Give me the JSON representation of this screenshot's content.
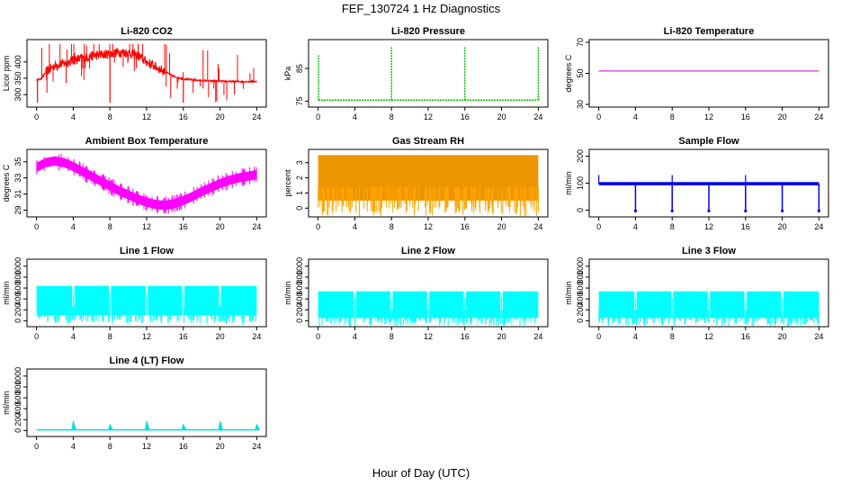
{
  "figure": {
    "title": "FEF_130724  1 Hz Diagnostics",
    "xlabel": "Hour of Day (UTC)"
  },
  "chart_data": [
    {
      "type": "line",
      "title": "Li-820 CO2",
      "ylabel": "Licor ppm",
      "color": "#ff0000",
      "xlim": [
        0,
        24
      ],
      "xticks": [
        0,
        4,
        8,
        12,
        16,
        20,
        24
      ],
      "ylim": [
        270,
        460
      ],
      "yticks": [
        300,
        350,
        400
      ],
      "pattern": "co2",
      "series": [
        {
          "x": [
            0,
            0.5,
            1,
            2,
            3,
            4,
            5,
            6,
            7,
            8,
            9,
            10,
            11,
            12,
            13,
            14,
            15,
            16,
            17,
            18,
            19,
            20,
            21,
            22,
            23,
            24
          ],
          "y": [
            345,
            348,
            368,
            390,
            395,
            405,
            412,
            418,
            422,
            425,
            430,
            428,
            420,
            400,
            385,
            370,
            355,
            348,
            345,
            343,
            342,
            341,
            340,
            340,
            340,
            340
          ]
        }
      ]
    },
    {
      "type": "line",
      "title": "Li-820 Pressure",
      "ylabel": "kPa",
      "color": "#00bb00",
      "xlim": [
        0,
        24
      ],
      "xticks": [
        0,
        4,
        8,
        12,
        16,
        20,
        24
      ],
      "ylim": [
        74,
        93
      ],
      "yticks": [
        75,
        85
      ],
      "pattern": "pressure",
      "series": [
        {
          "x": [
            0,
            24
          ],
          "y": [
            75.3,
            75.3
          ]
        }
      ],
      "spikes": [
        {
          "x": 0.05,
          "y": 89
        },
        {
          "x": 8,
          "y": 91.5
        },
        {
          "x": 16,
          "y": 91.5
        },
        {
          "x": 24,
          "y": 91.5
        }
      ]
    },
    {
      "type": "line",
      "title": "Li-820 Temperature",
      "ylabel": "degrees C",
      "color": "#cc00cc",
      "xlim": [
        0,
        24
      ],
      "xticks": [
        0,
        4,
        8,
        12,
        16,
        20,
        24
      ],
      "ylim": [
        30,
        70
      ],
      "yticks": [
        30,
        50,
        70
      ],
      "pattern": "flat",
      "series": [
        {
          "x": [
            0,
            24
          ],
          "y": [
            51.5,
            51.5
          ]
        }
      ]
    },
    {
      "type": "line",
      "title": "Ambient Box Temperature",
      "ylabel": "degrees C",
      "color": "#ff00ff",
      "xlim": [
        0,
        24
      ],
      "xticks": [
        0,
        4,
        8,
        12,
        16,
        20,
        24
      ],
      "ylim": [
        28.5,
        36.2
      ],
      "yticks": [
        29,
        31,
        33,
        35
      ],
      "pattern": "temperature",
      "series": [
        {
          "x": [
            0,
            1,
            2,
            3,
            4,
            5,
            6,
            7,
            8,
            9,
            10,
            11,
            12,
            13,
            14,
            15,
            16,
            17,
            18,
            19,
            20,
            21,
            22,
            23,
            24
          ],
          "y": [
            34.3,
            34.9,
            35.1,
            34.9,
            34.4,
            33.8,
            33.2,
            32.6,
            32.0,
            31.4,
            30.9,
            30.4,
            30.0,
            29.7,
            29.6,
            29.8,
            30.2,
            30.7,
            31.3,
            31.8,
            32.3,
            32.7,
            33.0,
            33.2,
            33.4
          ]
        }
      ]
    },
    {
      "type": "area",
      "title": "Gas Stream RH",
      "ylabel": "percent",
      "color": "#ffa500",
      "xlim": [
        0,
        24
      ],
      "xticks": [
        0,
        4,
        8,
        12,
        16,
        20,
        24
      ],
      "ylim": [
        -0.4,
        3.7
      ],
      "yticks": [
        0,
        1,
        2,
        3
      ],
      "pattern": "band",
      "series": [
        {
          "x": [
            0,
            24
          ],
          "upper": [
            3.5,
            3.5
          ],
          "lower": [
            0.5,
            0.5
          ]
        }
      ]
    },
    {
      "type": "line",
      "title": "Sample Flow",
      "ylabel": "ml/min",
      "color": "#0000ee",
      "xlim": [
        0,
        24
      ],
      "xticks": [
        0,
        4,
        8,
        12,
        16,
        20,
        24
      ],
      "ylim": [
        -15,
        215
      ],
      "yticks": [
        0,
        100,
        200
      ],
      "pattern": "sampleflow",
      "series": [
        {
          "x": [
            0,
            24
          ],
          "y": [
            98,
            98
          ]
        }
      ],
      "dips": [
        4,
        8,
        12,
        16,
        20,
        24
      ],
      "peaks": [
        0,
        8,
        16
      ]
    },
    {
      "type": "area",
      "title": "Line 1 Flow",
      "ylabel": "ml/min",
      "color": "#00ffff",
      "xlim": [
        0,
        24
      ],
      "xticks": [
        0,
        4,
        8,
        12,
        16,
        20,
        24
      ],
      "ylim": [
        -60,
        1080
      ],
      "yticks": [
        0,
        200,
        400,
        600,
        800,
        1000
      ],
      "pattern": "band",
      "series": [
        {
          "x": [
            0,
            24
          ],
          "upper": [
            640,
            640
          ],
          "lower": [
            100,
            100
          ]
        }
      ],
      "gaps": [
        4,
        8,
        12,
        16,
        20
      ]
    },
    {
      "type": "area",
      "title": "Line 2 Flow",
      "ylabel": "ml/min",
      "color": "#00ffff",
      "xlim": [
        0,
        24
      ],
      "xticks": [
        0,
        4,
        8,
        12,
        16,
        20,
        24
      ],
      "ylim": [
        -60,
        1080
      ],
      "yticks": [
        0,
        200,
        400,
        600,
        800,
        1000
      ],
      "pattern": "band",
      "series": [
        {
          "x": [
            0,
            24
          ],
          "upper": [
            540,
            540
          ],
          "lower": [
            50,
            50
          ]
        }
      ],
      "gaps": [
        4,
        8,
        12,
        16,
        20
      ]
    },
    {
      "type": "area",
      "title": "Line 3 Flow",
      "ylabel": "ml/min",
      "color": "#00ffff",
      "xlim": [
        0,
        24
      ],
      "xticks": [
        0,
        4,
        8,
        12,
        16,
        20,
        24
      ],
      "ylim": [
        -60,
        1080
      ],
      "yticks": [
        0,
        200,
        400,
        600,
        800,
        1000
      ],
      "pattern": "band",
      "series": [
        {
          "x": [
            0,
            24
          ],
          "upper": [
            540,
            540
          ],
          "lower": [
            50,
            50
          ]
        }
      ],
      "gaps": [
        4,
        8,
        12,
        16,
        20
      ]
    },
    {
      "type": "line",
      "title": "Line 4 (LT) Flow",
      "ylabel": "ml/min",
      "color": "#00e0e0",
      "xlim": [
        0,
        24
      ],
      "xticks": [
        0,
        4,
        8,
        12,
        16,
        20,
        24
      ],
      "ylim": [
        -60,
        1080
      ],
      "yticks": [
        0,
        200,
        400,
        600,
        800,
        1000
      ],
      "pattern": "lt",
      "series": [
        {
          "x": [
            0,
            24
          ],
          "y": [
            12,
            12
          ]
        }
      ],
      "spikes": [
        {
          "x": 4,
          "y": 170
        },
        {
          "x": 8,
          "y": 110
        },
        {
          "x": 12,
          "y": 170
        },
        {
          "x": 16,
          "y": 110
        },
        {
          "x": 20,
          "y": 170
        },
        {
          "x": 24,
          "y": 110
        }
      ]
    }
  ]
}
